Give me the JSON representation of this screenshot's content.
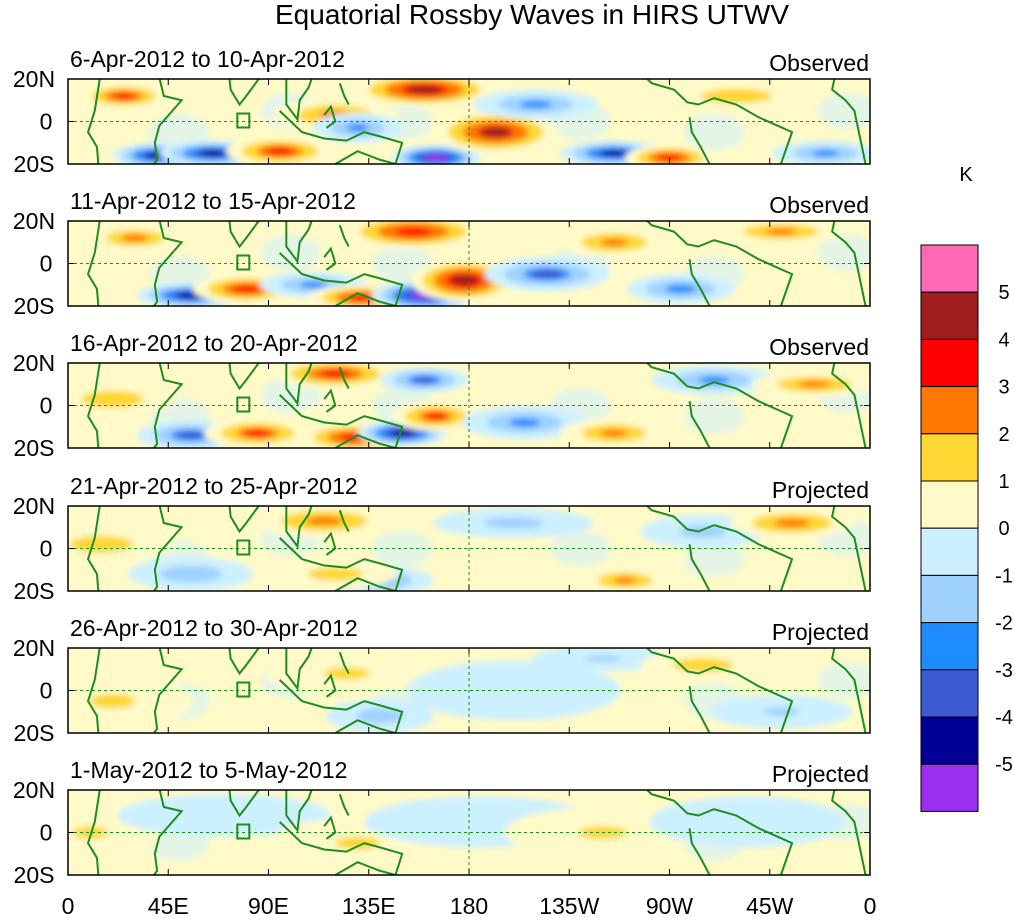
{
  "chart_data": {
    "type": "heatmap",
    "title": "Equatorial Rossby Waves in HIRS UTWV",
    "units_label": "K",
    "x_ticks": [
      "0",
      "45E",
      "90E",
      "135E",
      "180",
      "135W",
      "90W",
      "45W",
      "0"
    ],
    "y_ticks": [
      "20N",
      "0",
      "20S"
    ],
    "xlim_deg_east": [
      0,
      360
    ],
    "ylim_deg": [
      -25,
      25
    ],
    "colorbar": {
      "levels": [
        -5,
        -4,
        -3,
        -2,
        -1,
        0,
        1,
        2,
        3,
        4,
        5
      ],
      "level_labels": [
        "5",
        "4",
        "3",
        "2",
        "1",
        "0",
        "-1",
        "-2",
        "-3",
        "-4",
        "-5"
      ],
      "colors": [
        "#9b2ff0",
        "#000096",
        "#3c5ad2",
        "#1e8cff",
        "#a0d2ff",
        "#cdf0ff",
        "#fffac8",
        "#ffd732",
        "#ff7800",
        "#ff0000",
        "#a01e1e",
        "#ff69b4"
      ]
    },
    "panels": [
      {
        "date_range": "6-Apr-2012 to 10-Apr-2012",
        "kind": "Observed",
        "blobs": [
          {
            "lon": 25,
            "lat": 12,
            "value": 3.5,
            "rlon": 10,
            "rlat": 6
          },
          {
            "lon": 40,
            "lat": -16,
            "value": -4.5,
            "rlon": 10,
            "rlat": 6
          },
          {
            "lon": 65,
            "lat": -15,
            "value": -4.5,
            "rlon": 12,
            "rlat": 6
          },
          {
            "lon": 95,
            "lat": -14,
            "value": 3.5,
            "rlon": 12,
            "rlat": 7
          },
          {
            "lon": 120,
            "lat": 3,
            "value": 2.5,
            "rlon": 14,
            "rlat": 8
          },
          {
            "lon": 130,
            "lat": -3,
            "value": -2.5,
            "rlon": 10,
            "rlat": 7
          },
          {
            "lon": 160,
            "lat": 15,
            "value": 4.5,
            "rlon": 16,
            "rlat": 8
          },
          {
            "lon": 165,
            "lat": -17,
            "value": -5.2,
            "rlon": 10,
            "rlat": 6
          },
          {
            "lon": 192,
            "lat": -5,
            "value": 4.2,
            "rlon": 14,
            "rlat": 10
          },
          {
            "lon": 210,
            "lat": 8,
            "value": -2.5,
            "rlon": 14,
            "rlat": 7
          },
          {
            "lon": 245,
            "lat": -15,
            "value": -4.2,
            "rlon": 12,
            "rlat": 6
          },
          {
            "lon": 270,
            "lat": -17,
            "value": 3.8,
            "rlon": 10,
            "rlat": 6
          },
          {
            "lon": 300,
            "lat": 12,
            "value": 2.0,
            "rlon": 16,
            "rlat": 7
          },
          {
            "lon": 340,
            "lat": -15,
            "value": -2.5,
            "rlon": 12,
            "rlat": 6
          }
        ]
      },
      {
        "date_range": "11-Apr-2012 to 15-Apr-2012",
        "kind": "Observed",
        "blobs": [
          {
            "lon": 30,
            "lat": 12,
            "value": 2.2,
            "rlon": 12,
            "rlat": 7
          },
          {
            "lon": 55,
            "lat": -15,
            "value": -4.5,
            "rlon": 12,
            "rlat": 6
          },
          {
            "lon": 80,
            "lat": -12,
            "value": 3.6,
            "rlon": 12,
            "rlat": 7
          },
          {
            "lon": 110,
            "lat": -10,
            "value": -2.5,
            "rlon": 12,
            "rlat": 6
          },
          {
            "lon": 132,
            "lat": -16,
            "value": 4.0,
            "rlon": 12,
            "rlat": 6
          },
          {
            "lon": 155,
            "lat": 15,
            "value": 4.0,
            "rlon": 16,
            "rlat": 8
          },
          {
            "lon": 160,
            "lat": -15,
            "value": -5.2,
            "rlon": 12,
            "rlat": 7
          },
          {
            "lon": 178,
            "lat": -8,
            "value": 4.6,
            "rlon": 12,
            "rlat": 10
          },
          {
            "lon": 215,
            "lat": -5,
            "value": -3.2,
            "rlon": 14,
            "rlat": 8
          },
          {
            "lon": 245,
            "lat": 10,
            "value": 2.6,
            "rlon": 12,
            "rlat": 7
          },
          {
            "lon": 275,
            "lat": -12,
            "value": -2.8,
            "rlon": 12,
            "rlat": 7
          },
          {
            "lon": 320,
            "lat": 15,
            "value": 2.5,
            "rlon": 14,
            "rlat": 6
          }
        ]
      },
      {
        "date_range": "16-Apr-2012 to 20-Apr-2012",
        "kind": "Observed",
        "blobs": [
          {
            "lon": 20,
            "lat": 3,
            "value": 2.0,
            "rlon": 14,
            "rlat": 8
          },
          {
            "lon": 55,
            "lat": -14,
            "value": -3.2,
            "rlon": 12,
            "rlat": 7
          },
          {
            "lon": 85,
            "lat": -13,
            "value": 3.2,
            "rlon": 12,
            "rlat": 7
          },
          {
            "lon": 120,
            "lat": 15,
            "value": 3.6,
            "rlon": 14,
            "rlat": 7
          },
          {
            "lon": 128,
            "lat": -15,
            "value": 3.8,
            "rlon": 12,
            "rlat": 7
          },
          {
            "lon": 150,
            "lat": -13,
            "value": -5.0,
            "rlon": 10,
            "rlat": 6
          },
          {
            "lon": 165,
            "lat": -5,
            "value": 3.2,
            "rlon": 10,
            "rlat": 7
          },
          {
            "lon": 160,
            "lat": 12,
            "value": -3.2,
            "rlon": 10,
            "rlat": 6
          },
          {
            "lon": 205,
            "lat": -8,
            "value": -2.5,
            "rlon": 14,
            "rlat": 8
          },
          {
            "lon": 245,
            "lat": -13,
            "value": 2.5,
            "rlon": 12,
            "rlat": 7
          },
          {
            "lon": 290,
            "lat": 12,
            "value": -2.5,
            "rlon": 14,
            "rlat": 7
          },
          {
            "lon": 335,
            "lat": 10,
            "value": 2.5,
            "rlon": 14,
            "rlat": 6
          }
        ]
      },
      {
        "date_range": "21-Apr-2012 to 25-Apr-2012",
        "kind": "Projected",
        "blobs": [
          {
            "lon": 15,
            "lat": 2,
            "value": 1.8,
            "rlon": 16,
            "rlat": 9
          },
          {
            "lon": 55,
            "lat": -12,
            "value": -2.0,
            "rlon": 14,
            "rlat": 8
          },
          {
            "lon": 115,
            "lat": 13,
            "value": 2.5,
            "rlon": 16,
            "rlat": 8
          },
          {
            "lon": 140,
            "lat": -15,
            "value": -2.5,
            "rlon": 12,
            "rlat": 7
          },
          {
            "lon": 120,
            "lat": -12,
            "value": 1.8,
            "rlon": 14,
            "rlat": 7
          },
          {
            "lon": 200,
            "lat": 12,
            "value": -1.6,
            "rlon": 18,
            "rlat": 7
          },
          {
            "lon": 250,
            "lat": -15,
            "value": 2.6,
            "rlon": 10,
            "rlat": 6
          },
          {
            "lon": 285,
            "lat": 8,
            "value": -1.6,
            "rlon": 14,
            "rlat": 8
          },
          {
            "lon": 325,
            "lat": 12,
            "value": 2.8,
            "rlon": 14,
            "rlat": 7
          }
        ]
      },
      {
        "date_range": "26-Apr-2012 to 30-Apr-2012",
        "kind": "Projected",
        "blobs": [
          {
            "lon": 20,
            "lat": -5,
            "value": 1.4,
            "rlon": 18,
            "rlat": 12
          },
          {
            "lon": 125,
            "lat": 8,
            "value": 1.4,
            "rlon": 18,
            "rlat": 10
          },
          {
            "lon": 140,
            "lat": -12,
            "value": -1.8,
            "rlon": 12,
            "rlat": 8
          },
          {
            "lon": 200,
            "lat": 0,
            "value": -0.8,
            "rlon": 24,
            "rlat": 14
          },
          {
            "lon": 240,
            "lat": 15,
            "value": -1.3,
            "rlon": 16,
            "rlat": 6
          },
          {
            "lon": 285,
            "lat": 12,
            "value": 1.9,
            "rlon": 14,
            "rlat": 7
          },
          {
            "lon": 320,
            "lat": -10,
            "value": -1.2,
            "rlon": 16,
            "rlat": 8
          }
        ]
      },
      {
        "date_range": "1-May-2012 to 5-May-2012",
        "kind": "Projected",
        "blobs": [
          {
            "lon": 10,
            "lat": 0,
            "value": 1.2,
            "rlon": 16,
            "rlat": 12
          },
          {
            "lon": 70,
            "lat": 8,
            "value": -0.7,
            "rlon": 24,
            "rlat": 10
          },
          {
            "lon": 130,
            "lat": -5,
            "value": 1.2,
            "rlon": 20,
            "rlat": 12
          },
          {
            "lon": 185,
            "lat": 5,
            "value": -0.7,
            "rlon": 26,
            "rlat": 12
          },
          {
            "lon": 240,
            "lat": 0,
            "value": 1.1,
            "rlon": 22,
            "rlat": 12
          },
          {
            "lon": 305,
            "lat": 5,
            "value": -0.6,
            "rlon": 22,
            "rlat": 12
          }
        ]
      }
    ]
  }
}
